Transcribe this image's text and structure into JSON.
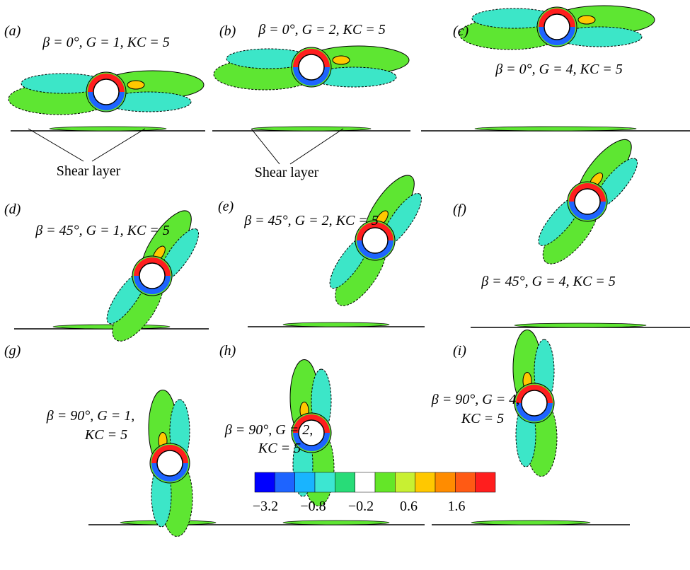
{
  "panels": [
    {
      "label": "(a)",
      "caption": [
        "β = 0°, G = 1, KC = 5"
      ]
    },
    {
      "label": "(b)",
      "caption": [
        "β = 0°, G = 2, KC = 5"
      ]
    },
    {
      "label": "(c)",
      "caption": [
        "β = 0°, G = 4, KC = 5"
      ]
    },
    {
      "label": "(d)",
      "caption": [
        "β = 45°, G = 1, KC = 5"
      ]
    },
    {
      "label": "(e)",
      "caption": [
        "β = 45°, G = 2, KC = 5"
      ]
    },
    {
      "label": "(f)",
      "caption": [
        "β = 45°, G = 4, KC = 5"
      ]
    },
    {
      "label": "(g)",
      "caption": [
        "β = 90°, G = 1,",
        "KC = 5"
      ]
    },
    {
      "label": "(h)",
      "caption": [
        "β = 90°, G = 2,",
        "KC = 5"
      ]
    },
    {
      "label": "(i)",
      "caption": [
        "β = 90°, G = 4,",
        "KC = 5"
      ]
    }
  ],
  "annotations": [
    "Shear layer",
    "Shear layer"
  ],
  "colorbar": {
    "colors": [
      "#0000ff",
      "#1e64ff",
      "#19b4ff",
      "#3ce6d2",
      "#28dc78",
      "#ffffff",
      "#64e628",
      "#c8f032",
      "#ffc800",
      "#ff8c00",
      "#ff5a14",
      "#ff1e1e"
    ],
    "labels": [
      "−3.2",
      "−0.8",
      "−0.2",
      "0.6",
      "1.6"
    ]
  }
}
